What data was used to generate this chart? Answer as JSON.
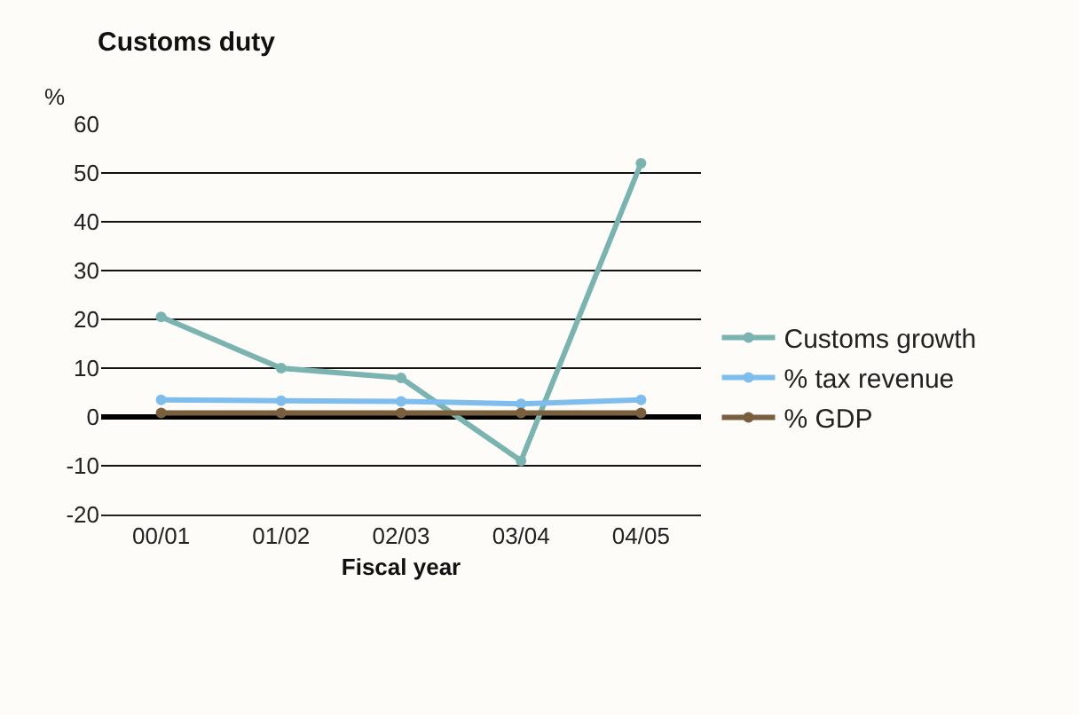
{
  "chart_data": {
    "type": "line",
    "title": "Customs duty",
    "xlabel": "Fiscal year",
    "ylabel": "%",
    "categories": [
      "00/01",
      "01/02",
      "02/03",
      "03/04",
      "04/05"
    ],
    "series": [
      {
        "name": "Customs growth",
        "color": "#7ab3b0",
        "values": [
          20.5,
          10,
          8,
          -9,
          52
        ]
      },
      {
        "name": "% tax revenue",
        "color": "#7fbdec",
        "values": [
          3.5,
          3.3,
          3.2,
          2.7,
          3.5
        ]
      },
      {
        "name": "% GDP",
        "color": "#7a5f3e",
        "values": [
          0.8,
          0.8,
          0.8,
          0.8,
          0.8
        ]
      }
    ],
    "ylim": [
      -20,
      60
    ],
    "yticks": [
      -20,
      -10,
      0,
      10,
      20,
      30,
      40,
      50,
      60
    ],
    "grid": "y",
    "legend": "right",
    "marker": "circle",
    "line_style": "solid"
  }
}
